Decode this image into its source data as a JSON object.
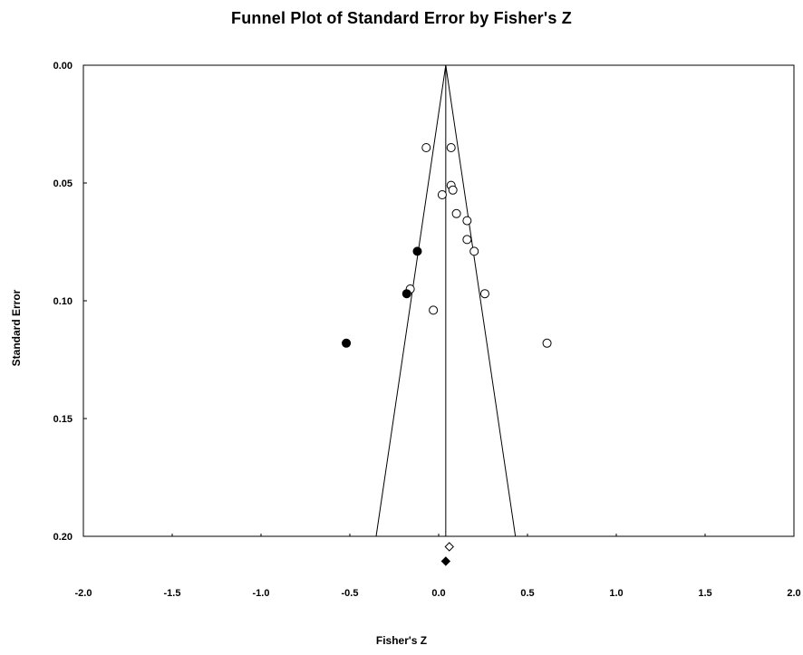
{
  "chart_data": {
    "type": "scatter",
    "title": "Funnel Plot of Standard Error by Fisher's Z",
    "xlabel": "Fisher's Z",
    "ylabel": "Standard Error",
    "xlim": [
      -2.0,
      2.0
    ],
    "ylim": [
      0.0,
      0.2
    ],
    "y_inverted": true,
    "x_ticks": [
      "-2.0",
      "-1.5",
      "-1.0",
      "-0.5",
      "0.0",
      "0.5",
      "1.0",
      "1.5",
      "2.0"
    ],
    "x_tick_values": [
      -2.0,
      -1.5,
      -1.0,
      -0.5,
      0.0,
      0.5,
      1.0,
      1.5,
      2.0
    ],
    "y_ticks": [
      "0.00",
      "0.05",
      "0.10",
      "0.15",
      "0.20"
    ],
    "y_tick_values": [
      0.0,
      0.05,
      0.1,
      0.15,
      0.2
    ],
    "grid": false,
    "funnel": {
      "center": 0.04,
      "se_max": 0.2,
      "z": 1.96
    },
    "series": [
      {
        "marker": "open-circle",
        "points": [
          {
            "x": -0.07,
            "y": 0.035
          },
          {
            "x": 0.07,
            "y": 0.035
          },
          {
            "x": 0.07,
            "y": 0.051
          },
          {
            "x": 0.08,
            "y": 0.053
          },
          {
            "x": 0.02,
            "y": 0.055
          },
          {
            "x": 0.1,
            "y": 0.063
          },
          {
            "x": 0.16,
            "y": 0.066
          },
          {
            "x": 0.16,
            "y": 0.074
          },
          {
            "x": 0.2,
            "y": 0.079
          },
          {
            "x": -0.16,
            "y": 0.095
          },
          {
            "x": 0.26,
            "y": 0.097
          },
          {
            "x": -0.03,
            "y": 0.104
          },
          {
            "x": 0.61,
            "y": 0.118
          }
        ]
      },
      {
        "marker": "filled-circle",
        "points": [
          {
            "x": -0.12,
            "y": 0.079
          },
          {
            "x": -0.18,
            "y": 0.097
          },
          {
            "x": -0.52,
            "y": 0.118
          }
        ]
      }
    ],
    "summary": [
      {
        "marker": "open-diamond",
        "x": 0.06,
        "row": 1
      },
      {
        "marker": "filled-diamond",
        "x": 0.04,
        "row": 2
      }
    ]
  }
}
